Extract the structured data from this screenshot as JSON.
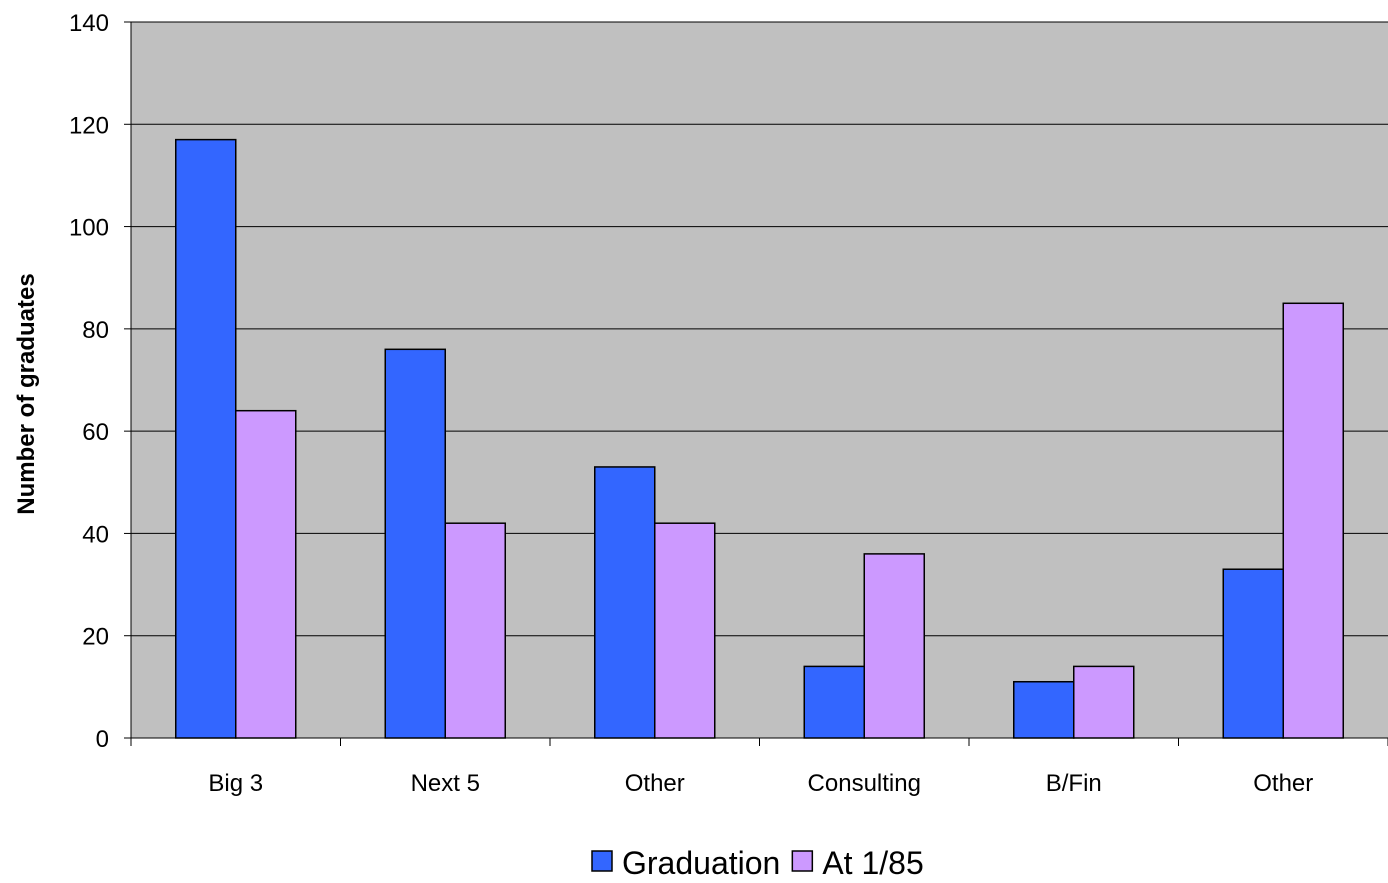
{
  "chart_data": {
    "type": "bar",
    "title": "",
    "xlabel": "",
    "ylabel": "Number of graduates",
    "ylim": [
      0,
      140
    ],
    "yticks": [
      0,
      20,
      40,
      60,
      80,
      100,
      120,
      140
    ],
    "categories": [
      "Big 3",
      "Next 5",
      "Other",
      "Consulting",
      "B/Fin",
      "Other"
    ],
    "series": [
      {
        "name": "Graduation",
        "color": "#3366ff",
        "values": [
          117,
          76,
          53,
          14,
          11,
          33
        ]
      },
      {
        "name": "At 1/85",
        "color": "#cc99ff",
        "values": [
          64,
          42,
          42,
          36,
          14,
          85
        ]
      }
    ],
    "grid": true,
    "plot_background": "#c0c0c0",
    "legend": "bottom"
  }
}
